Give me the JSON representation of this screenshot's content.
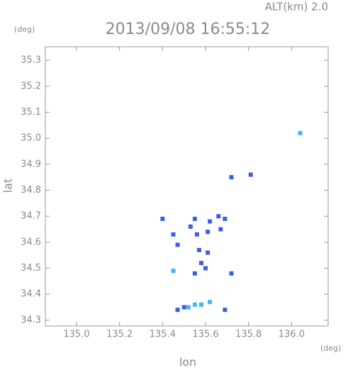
{
  "chart_data": {
    "type": "scatter",
    "header": "ALT(km) 2.0",
    "y_unit": "(deg)",
    "x_unit": "(deg)",
    "title": "2013/09/08 16:55:12",
    "xlabel": "lon",
    "ylabel": "lat",
    "xlim": [
      134.855,
      136.17
    ],
    "ylim": [
      34.278,
      35.352
    ],
    "xticks": [
      {
        "value": 135.0,
        "label": "135.0"
      },
      135.2,
      135.4,
      135.6,
      135.8,
      {
        "value": 136.0,
        "label": "136.0"
      }
    ],
    "yticks": [
      34.3,
      34.4,
      34.5,
      34.6,
      34.7,
      34.8,
      34.9,
      {
        "value": 35.0,
        "label": "35.0"
      },
      35.1,
      35.2,
      35.3
    ],
    "series": [
      {
        "color": "#3f5de0",
        "x": [
          135.4,
          135.45,
          135.47,
          135.53,
          135.55,
          135.56,
          135.57,
          135.58,
          135.6,
          135.61,
          135.62,
          135.61,
          135.66,
          135.69,
          135.67,
          135.55,
          135.72,
          135.72,
          135.81,
          135.69,
          135.47,
          135.5
        ],
        "values": [
          34.69,
          34.63,
          34.59,
          34.66,
          34.69,
          34.63,
          34.57,
          34.52,
          34.5,
          34.56,
          34.68,
          34.64,
          34.7,
          34.69,
          34.65,
          34.48,
          34.48,
          34.85,
          34.86,
          34.34,
          34.34,
          34.35
        ]
      },
      {
        "color": "#45b4f2",
        "x": [
          135.45,
          135.52,
          135.55,
          135.58,
          135.62,
          136.04
        ],
        "values": [
          34.49,
          34.35,
          34.36,
          34.36,
          34.37,
          35.02
        ]
      }
    ]
  }
}
